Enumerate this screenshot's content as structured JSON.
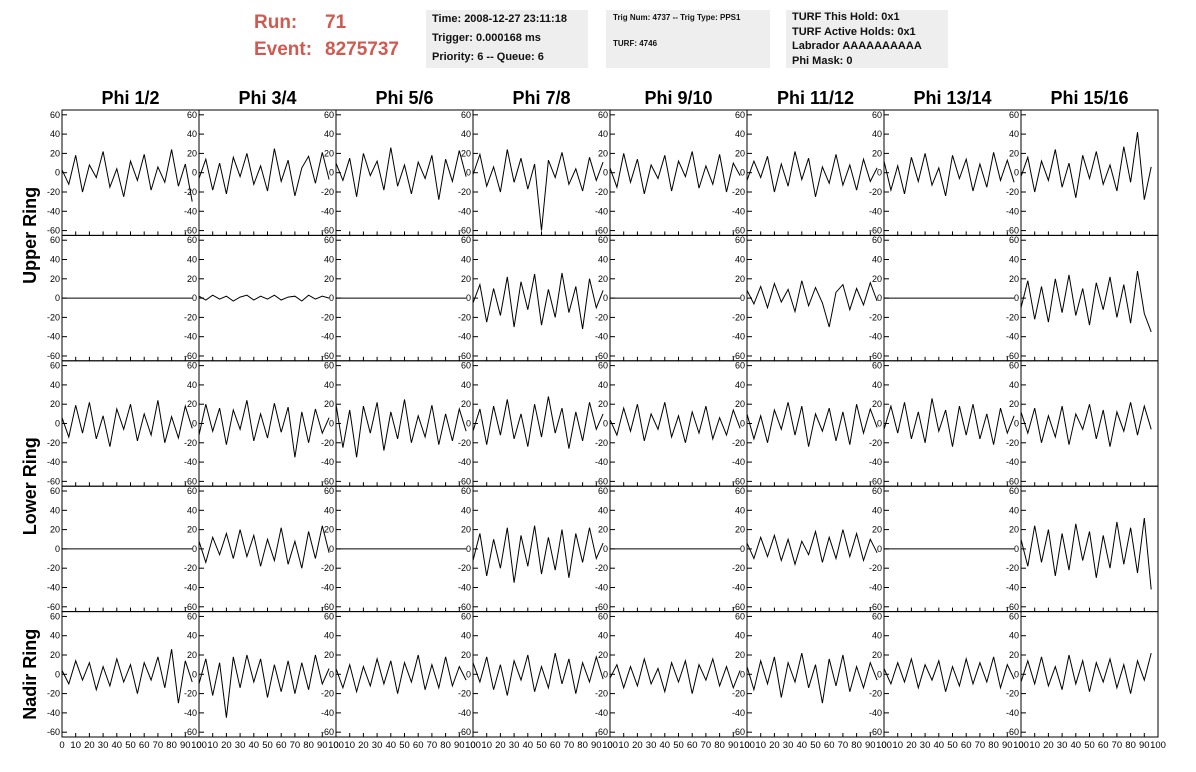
{
  "header": {
    "run_label": "Run:",
    "run": "71",
    "event_label": "Event:",
    "event": "8275737",
    "box1": [
      "Time: 2008-12-27 23:11:18",
      "Trigger: 0.000168 ms",
      "Priority: 6 -- Queue: 6"
    ],
    "box2": [
      "Trig Num: 4737 -- Trig Type: PPS1",
      "TURF: 4746"
    ],
    "box3": [
      "TURF This Hold: 0x1",
      "TURF Active Holds: 0x1",
      "Labrador AAAAAAAAAA",
      "Phi Mask: 0"
    ]
  },
  "chart_data": {
    "type": "waveform-grid",
    "columns": [
      "Phi 1/2",
      "Phi 3/4",
      "Phi 5/6",
      "Phi 7/8",
      "Phi 9/10",
      "Phi 11/12",
      "Phi 13/14",
      "Phi 15/16"
    ],
    "ring_labels": [
      "Upper Ring",
      "Lower Ring",
      "Nadir Ring"
    ],
    "xlim": [
      0,
      100
    ],
    "xticks": [
      0,
      10,
      20,
      30,
      40,
      50,
      60,
      70,
      80,
      90,
      100
    ],
    "ylim": [
      -65,
      65
    ],
    "yticks": [
      60,
      40,
      20,
      0,
      -20,
      -40,
      -60
    ],
    "color": "#000000",
    "x": [
      0,
      5,
      10,
      15,
      20,
      25,
      30,
      35,
      40,
      45,
      50,
      55,
      60,
      65,
      70,
      75,
      80,
      85,
      90,
      95
    ],
    "waveforms": [
      [
        [
          3,
          -12,
          18,
          -20,
          8,
          -5,
          22,
          -15,
          4,
          -25,
          12,
          -8,
          19,
          -18,
          6,
          -10,
          24,
          -14,
          9,
          -30
        ],
        [
          -6,
          14,
          -18,
          10,
          -22,
          16,
          -4,
          20,
          -12,
          7,
          -19,
          25,
          -9,
          13,
          -24,
          5,
          17,
          -11,
          21,
          -7
        ],
        [
          10,
          -8,
          15,
          -25,
          20,
          -3,
          12,
          -18,
          26,
          -14,
          8,
          -22,
          11,
          -6,
          18,
          -28,
          14,
          -9,
          23,
          -4
        ],
        [
          -2,
          19,
          -14,
          6,
          -20,
          24,
          -10,
          15,
          -17,
          9,
          -60,
          13,
          -5,
          21,
          -12,
          4,
          -19,
          16,
          -8,
          11
        ],
        [
          5,
          -15,
          20,
          -10,
          14,
          -22,
          8,
          -6,
          18,
          -19,
          12,
          -4,
          22,
          -16,
          7,
          -12,
          19,
          -20,
          10,
          -3
        ],
        [
          -8,
          12,
          -5,
          17,
          -20,
          9,
          -14,
          22,
          -7,
          15,
          -25,
          6,
          -11,
          19,
          -13,
          8,
          -18,
          14,
          -9,
          5
        ],
        [
          12,
          -18,
          7,
          -22,
          16,
          -9,
          20,
          -13,
          5,
          -24,
          18,
          -6,
          14,
          -19,
          9,
          -15,
          21,
          -8,
          13,
          -10
        ],
        [
          -4,
          16,
          -20,
          12,
          -8,
          24,
          -15,
          10,
          -26,
          18,
          -6,
          22,
          -12,
          8,
          -19,
          27,
          -10,
          42,
          -28,
          6
        ]
      ],
      [
        [
          0,
          0,
          0,
          0,
          0,
          0,
          0,
          0,
          0,
          0,
          0,
          0,
          0,
          0,
          0,
          0,
          0,
          0,
          0,
          0
        ],
        [
          2,
          -2,
          3,
          -1,
          2,
          -3,
          1,
          3,
          -2,
          2,
          -1,
          3,
          -2,
          1,
          2,
          -3,
          3,
          -1,
          2,
          0
        ],
        [
          0,
          0,
          0,
          0,
          0,
          0,
          0,
          0,
          0,
          0,
          0,
          0,
          0,
          0,
          0,
          0,
          0,
          0,
          0,
          0
        ],
        [
          -5,
          14,
          -25,
          10,
          -18,
          22,
          -30,
          17,
          -12,
          25,
          -28,
          9,
          -20,
          26,
          -15,
          12,
          -32,
          20,
          -10,
          8
        ],
        [
          0,
          0,
          0,
          0,
          0,
          0,
          0,
          0,
          0,
          0,
          0,
          0,
          0,
          0,
          0,
          0,
          0,
          0,
          0,
          0
        ],
        [
          8,
          -6,
          12,
          -10,
          15,
          -4,
          9,
          -14,
          18,
          -8,
          11,
          -5,
          -30,
          6,
          14,
          -12,
          10,
          -7,
          16,
          -3
        ],
        [
          0,
          0,
          0,
          0,
          0,
          0,
          0,
          0,
          0,
          0,
          0,
          0,
          0,
          0,
          0,
          0,
          0,
          0,
          0,
          0
        ],
        [
          -10,
          18,
          -22,
          12,
          -25,
          20,
          -15,
          24,
          -18,
          10,
          -28,
          16,
          -12,
          22,
          -20,
          14,
          -26,
          28,
          -16,
          -35
        ]
      ],
      [
        [
          6,
          -14,
          19,
          -10,
          22,
          -16,
          8,
          -24,
          15,
          -6,
          20,
          -18,
          10,
          -12,
          24,
          -20,
          7,
          -15,
          18,
          -5
        ],
        [
          -12,
          20,
          -8,
          16,
          -22,
          14,
          -6,
          24,
          -18,
          10,
          -15,
          21,
          -9,
          17,
          -35,
          12,
          -20,
          15,
          -10,
          6
        ],
        [
          20,
          -25,
          14,
          -35,
          18,
          -10,
          22,
          -28,
          12,
          -16,
          25,
          -20,
          8,
          -14,
          19,
          -22,
          10,
          -18,
          15,
          -8
        ],
        [
          -8,
          15,
          -22,
          18,
          -12,
          25,
          -16,
          10,
          -24,
          20,
          -14,
          28,
          -10,
          16,
          -26,
          12,
          -18,
          22,
          -6,
          10
        ],
        [
          4,
          -12,
          16,
          -8,
          20,
          -18,
          10,
          -6,
          22,
          -14,
          8,
          -20,
          12,
          -10,
          18,
          -16,
          6,
          -12,
          14,
          -5
        ],
        [
          10,
          -16,
          8,
          -20,
          14,
          -6,
          22,
          -12,
          18,
          -24,
          10,
          -8,
          16,
          -18,
          12,
          -22,
          20,
          -10,
          15,
          -4
        ],
        [
          -6,
          18,
          -10,
          22,
          -16,
          12,
          -20,
          26,
          -8,
          14,
          -24,
          18,
          -12,
          20,
          -16,
          10,
          -22,
          16,
          -10,
          8
        ],
        [
          12,
          -10,
          16,
          -20,
          8,
          -14,
          18,
          -22,
          10,
          -6,
          20,
          -16,
          14,
          -24,
          12,
          -8,
          22,
          -12,
          18,
          -6
        ]
      ],
      [
        [
          0,
          0,
          0,
          0,
          0,
          0,
          0,
          0,
          0,
          0,
          0,
          0,
          0,
          0,
          0,
          0,
          0,
          0,
          0,
          0
        ],
        [
          8,
          -14,
          12,
          -6,
          16,
          -10,
          20,
          -8,
          14,
          -18,
          10,
          -12,
          22,
          -16,
          8,
          -20,
          18,
          -10,
          24,
          -4
        ],
        [
          0,
          0,
          0,
          0,
          0,
          0,
          0,
          0,
          0,
          0,
          0,
          0,
          0,
          0,
          0,
          0,
          0,
          0,
          0,
          0
        ],
        [
          -12,
          16,
          -28,
          10,
          -20,
          22,
          -35,
          14,
          -18,
          24,
          -26,
          12,
          -22,
          20,
          -30,
          16,
          -14,
          22,
          -10,
          6
        ],
        [
          0,
          0,
          0,
          0,
          0,
          0,
          0,
          0,
          0,
          0,
          0,
          0,
          0,
          0,
          0,
          0,
          0,
          0,
          0,
          0
        ],
        [
          6,
          -10,
          12,
          -8,
          14,
          -12,
          10,
          -16,
          8,
          -6,
          18,
          -14,
          12,
          -10,
          20,
          -8,
          16,
          -12,
          10,
          -4
        ],
        [
          0,
          0,
          0,
          0,
          0,
          0,
          0,
          0,
          0,
          0,
          0,
          0,
          0,
          0,
          0,
          0,
          0,
          0,
          0,
          0
        ],
        [
          10,
          -18,
          24,
          -14,
          20,
          -28,
          16,
          -22,
          26,
          -12,
          18,
          -30,
          14,
          -20,
          28,
          -16,
          22,
          -25,
          32,
          -42
        ]
      ],
      [
        [
          4,
          -10,
          14,
          -6,
          12,
          -16,
          8,
          -12,
          16,
          -8,
          10,
          -20,
          12,
          -6,
          18,
          -14,
          26,
          -30,
          14,
          -8
        ],
        [
          -10,
          16,
          -22,
          12,
          -45,
          18,
          -14,
          20,
          -8,
          16,
          -24,
          10,
          -18,
          14,
          -20,
          12,
          -16,
          20,
          -10,
          6
        ],
        [
          6,
          -14,
          10,
          -18,
          8,
          -12,
          16,
          -10,
          14,
          -20,
          12,
          -8,
          20,
          -16,
          10,
          -14,
          18,
          -12,
          8,
          -6
        ],
        [
          12,
          -8,
          18,
          -16,
          10,
          -22,
          14,
          -6,
          20,
          -18,
          8,
          -14,
          22,
          -10,
          16,
          -20,
          12,
          -8,
          18,
          -5
        ],
        [
          -4,
          10,
          -14,
          8,
          -12,
          16,
          -10,
          6,
          -18,
          12,
          -8,
          14,
          -20,
          10,
          -6,
          16,
          -12,
          8,
          -14,
          4
        ],
        [
          8,
          -16,
          14,
          -10,
          18,
          -24,
          12,
          -8,
          22,
          -14,
          10,
          -30,
          16,
          -12,
          20,
          -18,
          8,
          -14,
          12,
          -6
        ],
        [
          6,
          -10,
          12,
          -8,
          16,
          -14,
          10,
          -6,
          14,
          -18,
          8,
          -12,
          16,
          -10,
          12,
          -8,
          18,
          -14,
          10,
          -5
        ],
        [
          -8,
          14,
          -10,
          18,
          -12,
          8,
          -16,
          20,
          -10,
          14,
          -18,
          12,
          -8,
          16,
          -14,
          10,
          -20,
          14,
          -6,
          22
        ]
      ]
    ]
  }
}
